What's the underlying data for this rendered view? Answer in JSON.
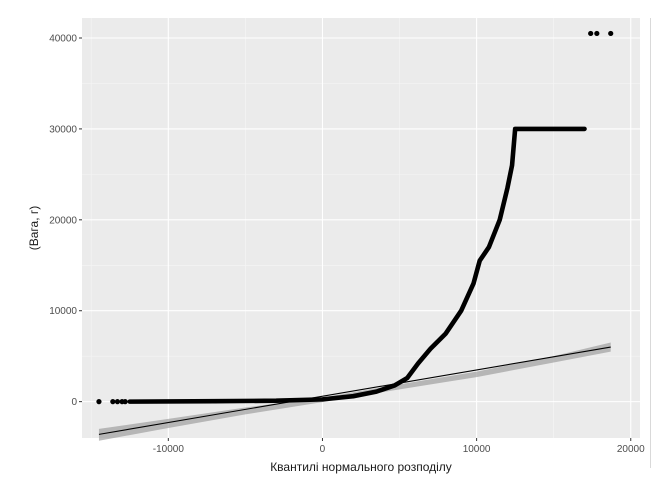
{
  "chart_data": {
    "type": "scatter",
    "subtype": "qq-plot",
    "xlabel": "Квантилі нормального розподілу",
    "ylabel": "(Вага, г)",
    "xlim": [
      -15600,
      20600
    ],
    "ylim": [
      -4000,
      42200
    ],
    "xticks": [
      -10000,
      0,
      10000,
      20000
    ],
    "xtick_labels": [
      "-10000",
      "0",
      "10000",
      "20000"
    ],
    "yticks": [
      0,
      10000,
      20000,
      30000,
      40000
    ],
    "ytick_labels": [
      "0",
      "10000",
      "20000",
      "30000",
      "40000"
    ],
    "grid": true,
    "colors": {
      "panel_background": "#ebebeb",
      "grid_major": "#ffffff",
      "grid_minor": "#f5f5f5",
      "points": "#000000",
      "reference_line": "#000000",
      "confidence_band": "#999999"
    },
    "outlier_points": [
      {
        "x": -14500,
        "y": 0
      },
      {
        "x": -13600,
        "y": 0
      },
      {
        "x": -13300,
        "y": 0
      },
      {
        "x": -13000,
        "y": 0
      },
      {
        "x": -12800,
        "y": 0
      },
      {
        "x": 17400,
        "y": 40500
      },
      {
        "x": 17800,
        "y": 40500
      },
      {
        "x": 18700,
        "y": 40500
      }
    ],
    "sample_curve": [
      {
        "x": -12500,
        "y": 0
      },
      {
        "x": -7000,
        "y": 50
      },
      {
        "x": -3000,
        "y": 100
      },
      {
        "x": 0,
        "y": 250
      },
      {
        "x": 2000,
        "y": 600
      },
      {
        "x": 3500,
        "y": 1100
      },
      {
        "x": 4700,
        "y": 1800
      },
      {
        "x": 5500,
        "y": 2600
      },
      {
        "x": 6200,
        "y": 4200
      },
      {
        "x": 7000,
        "y": 5800
      },
      {
        "x": 8000,
        "y": 7500
      },
      {
        "x": 9000,
        "y": 10000
      },
      {
        "x": 9800,
        "y": 13000
      },
      {
        "x": 10200,
        "y": 15500
      },
      {
        "x": 10800,
        "y": 17000
      },
      {
        "x": 11500,
        "y": 20000
      },
      {
        "x": 12000,
        "y": 23500
      },
      {
        "x": 12300,
        "y": 26000
      },
      {
        "x": 12500,
        "y": 30000
      },
      {
        "x": 17000,
        "y": 30000
      }
    ],
    "reference_line": {
      "x": [
        -14500,
        18700
      ],
      "y": [
        -3600,
        6000
      ]
    },
    "confidence_band": {
      "x": [
        -14500,
        -10000,
        -5000,
        0,
        5000,
        10000,
        15000,
        18700
      ],
      "upper": [
        -3000,
        -1900,
        -650,
        450,
        1900,
        3300,
        5000,
        6500
      ],
      "lower": [
        -4300,
        -2900,
        -1400,
        -50,
        1350,
        2700,
        4300,
        5500
      ]
    }
  }
}
